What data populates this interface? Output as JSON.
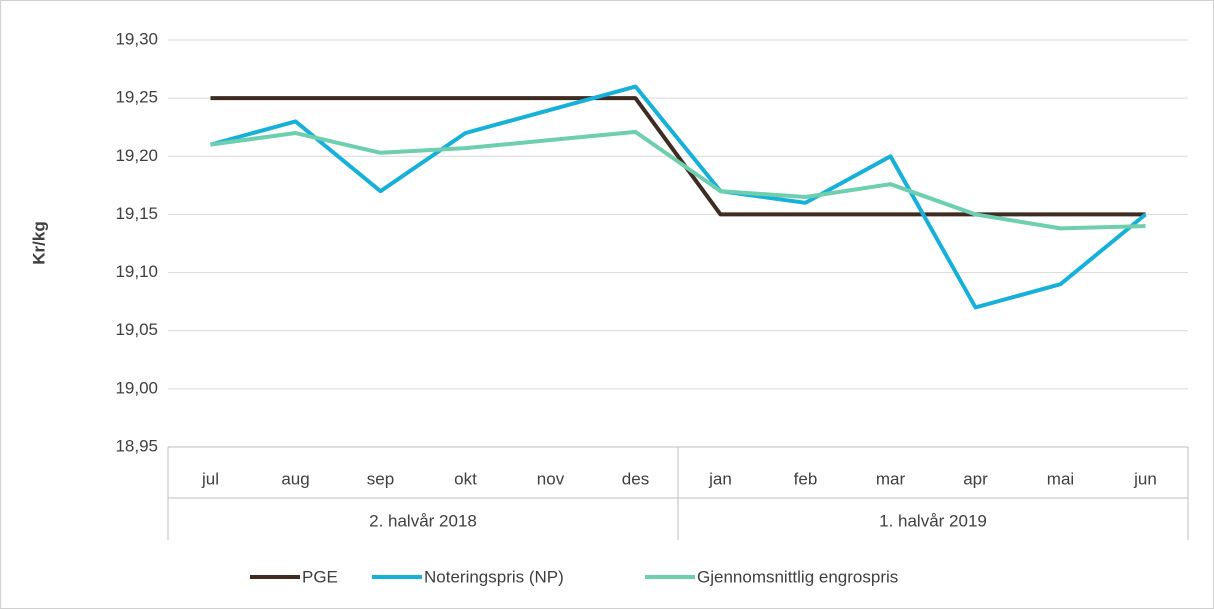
{
  "chart_data": {
    "type": "line",
    "y_label": "Kr/kg",
    "categories": [
      "jul",
      "aug",
      "sep",
      "okt",
      "nov",
      "des",
      "jan",
      "feb",
      "mar",
      "apr",
      "mai",
      "jun"
    ],
    "groups": [
      "2. halvår 2018",
      "1. halvår 2019"
    ],
    "series": [
      {
        "name": "PGE",
        "color": "#3e2b22",
        "values": [
          19.25,
          19.25,
          19.25,
          19.25,
          19.25,
          19.25,
          19.15,
          19.15,
          19.15,
          19.15,
          19.15,
          19.15
        ]
      },
      {
        "name": "Noteringspris (NP)",
        "color": "#17b0d9",
        "values": [
          19.21,
          19.23,
          19.17,
          19.22,
          19.24,
          19.26,
          19.17,
          19.16,
          19.2,
          19.07,
          19.09,
          19.15
        ]
      },
      {
        "name": "Gjennomsnittlig engrospris",
        "color": "#6dcfad",
        "values": [
          19.21,
          19.22,
          19.203,
          19.207,
          19.214,
          19.221,
          19.17,
          19.165,
          19.176,
          19.15,
          19.138,
          19.14
        ]
      }
    ],
    "ylim": [
      18.95,
      19.3
    ],
    "yticks": [
      {
        "value": 18.95,
        "label": "18,95"
      },
      {
        "value": 19.0,
        "label": "19,00"
      },
      {
        "value": 19.05,
        "label": "19,05"
      },
      {
        "value": 19.1,
        "label": "19,10"
      },
      {
        "value": 19.15,
        "label": "19,15"
      },
      {
        "value": 19.2,
        "label": "19,20"
      },
      {
        "value": 19.25,
        "label": "19,25"
      },
      {
        "value": 19.3,
        "label": "19,30"
      }
    ],
    "grid": true,
    "legend": "bottom"
  }
}
